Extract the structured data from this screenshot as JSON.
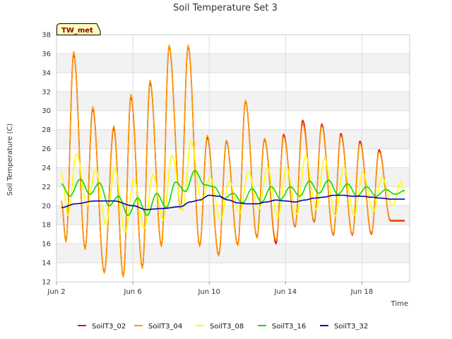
{
  "chart_data": {
    "type": "line",
    "title": "Soil Temperature Set 3",
    "xlabel": "Time",
    "ylabel": "Soil Temperature (C)",
    "ylim": [
      12,
      38
    ],
    "yticks": [
      12,
      14,
      16,
      18,
      20,
      22,
      24,
      26,
      28,
      30,
      32,
      34,
      36,
      38
    ],
    "x_range_days": [
      2,
      20.5
    ],
    "xticks": [
      {
        "value": 2,
        "label": "Jun 2"
      },
      {
        "value": 6,
        "label": "Jun 6"
      },
      {
        "value": 10,
        "label": "Jun 10"
      },
      {
        "value": 14,
        "label": "Jun 14"
      },
      {
        "value": 18,
        "label": "Jun 18"
      }
    ],
    "grid": true,
    "legend_position": "bottom",
    "site_badge": "TW_met",
    "series": [
      {
        "name": "SoilT3_02",
        "color": "#dd0000",
        "x": [
          2.25,
          2.5,
          2.9,
          3.5,
          3.9,
          4.5,
          5.0,
          5.5,
          5.9,
          6.5,
          6.9,
          7.5,
          7.9,
          8.5,
          8.9,
          9.5,
          9.9,
          10.5,
          10.9,
          11.5,
          11.9,
          12.5,
          12.9,
          13.5,
          13.9,
          14.5,
          14.9,
          15.5,
          15.9,
          16.5,
          16.9,
          17.5,
          17.9,
          18.5,
          18.9,
          19.5,
          19.9,
          20.25
        ],
        "values": [
          20.5,
          16.3,
          36.0,
          15.5,
          30.2,
          13.0,
          28.2,
          12.6,
          31.5,
          13.5,
          33.0,
          15.8,
          36.8,
          19.8,
          36.8,
          15.8,
          27.2,
          14.8,
          26.8,
          15.9,
          31.0,
          16.7,
          27.0,
          16.0,
          27.5,
          17.8,
          29.0,
          18.3,
          28.6,
          16.9,
          27.6,
          16.9,
          26.8,
          17.0,
          25.9,
          18.4,
          18.4,
          18.4
        ]
      },
      {
        "name": "SoilT3_04",
        "color": "#ff9900",
        "x": [
          2.25,
          2.5,
          2.9,
          3.5,
          3.9,
          4.5,
          5.0,
          5.5,
          5.9,
          6.5,
          6.9,
          7.5,
          7.9,
          8.5,
          8.9,
          9.5,
          9.9,
          10.5,
          10.9,
          11.5,
          11.9,
          12.5,
          12.9,
          13.5,
          13.9,
          14.5,
          14.9,
          15.5,
          15.9,
          16.5,
          16.9,
          17.5,
          17.9,
          18.5,
          18.9,
          19.5,
          19.9,
          20.25
        ],
        "values": [
          20.5,
          16.2,
          36.2,
          15.4,
          30.4,
          12.9,
          28.4,
          12.5,
          31.7,
          13.4,
          33.2,
          15.7,
          36.9,
          19.7,
          36.9,
          15.7,
          27.4,
          14.7,
          26.9,
          15.8,
          31.1,
          16.6,
          27.1,
          16.3,
          27.3,
          17.9,
          28.6,
          18.4,
          28.4,
          17.0,
          27.4,
          17.0,
          26.6,
          17.1,
          25.7,
          18.5,
          18.5,
          18.5
        ]
      },
      {
        "name": "SoilT3_08",
        "color": "#ffff00",
        "x": [
          2.25,
          2.6,
          3.05,
          3.6,
          4.05,
          4.6,
          5.05,
          5.6,
          6.05,
          6.6,
          7.05,
          7.6,
          8.05,
          8.6,
          9.05,
          9.6,
          10.05,
          10.6,
          11.05,
          11.6,
          12.05,
          12.6,
          13.05,
          13.6,
          14.05,
          14.6,
          15.05,
          15.6,
          16.05,
          16.6,
          17.05,
          17.6,
          18.05,
          18.6,
          19.05,
          19.6,
          20.05,
          20.25
        ],
        "values": [
          23.5,
          19.0,
          25.5,
          20.0,
          23.8,
          18.0,
          24.0,
          17.2,
          22.8,
          17.6,
          23.3,
          18.5,
          25.3,
          19.5,
          26.8,
          20.5,
          23.0,
          18.5,
          22.6,
          19.2,
          23.6,
          19.6,
          24.0,
          18.8,
          24.0,
          19.1,
          25.3,
          19.6,
          25.0,
          18.9,
          24.1,
          19.0,
          23.5,
          19.4,
          23.0,
          20.0,
          22.5,
          21.3
        ]
      },
      {
        "name": "SoilT3_16",
        "color": "#00dd00",
        "x": [
          2.25,
          2.7,
          3.25,
          3.75,
          4.25,
          4.75,
          5.25,
          5.75,
          6.25,
          6.75,
          7.25,
          7.75,
          8.25,
          8.75,
          9.25,
          9.75,
          10.25,
          10.75,
          11.25,
          11.75,
          12.25,
          12.75,
          13.25,
          13.75,
          14.25,
          14.75,
          15.25,
          15.75,
          16.25,
          16.75,
          17.25,
          17.75,
          18.25,
          18.75,
          19.25,
          19.75,
          20.25
        ],
        "values": [
          22.3,
          21.0,
          22.8,
          21.2,
          22.4,
          20.0,
          21.0,
          19.0,
          20.8,
          19.0,
          21.3,
          19.8,
          22.5,
          21.5,
          23.7,
          22.2,
          22.0,
          20.7,
          21.3,
          20.3,
          21.8,
          20.4,
          22.0,
          20.7,
          22.0,
          21.0,
          22.6,
          21.3,
          22.7,
          21.2,
          22.3,
          21.0,
          22.0,
          21.0,
          21.7,
          21.2,
          21.6
        ]
      },
      {
        "name": "SoilT3_32",
        "color": "#0000bb",
        "x": [
          2.25,
          3.0,
          4.0,
          5.0,
          6.0,
          6.7,
          7.5,
          8.5,
          9.0,
          9.5,
          10.0,
          10.5,
          11.0,
          11.5,
          12.0,
          12.5,
          13.0,
          13.5,
          14.0,
          14.5,
          15.0,
          15.5,
          16.0,
          16.5,
          17.0,
          17.5,
          18.0,
          18.5,
          19.0,
          19.5,
          20.0,
          20.25
        ],
        "values": [
          19.8,
          20.2,
          20.5,
          20.5,
          20.0,
          19.6,
          19.7,
          19.9,
          20.4,
          20.6,
          21.1,
          21.0,
          20.6,
          20.3,
          20.2,
          20.2,
          20.4,
          20.6,
          20.5,
          20.4,
          20.6,
          20.8,
          20.9,
          21.1,
          21.1,
          21.0,
          21.0,
          20.9,
          20.8,
          20.7,
          20.7,
          20.7
        ]
      }
    ]
  }
}
